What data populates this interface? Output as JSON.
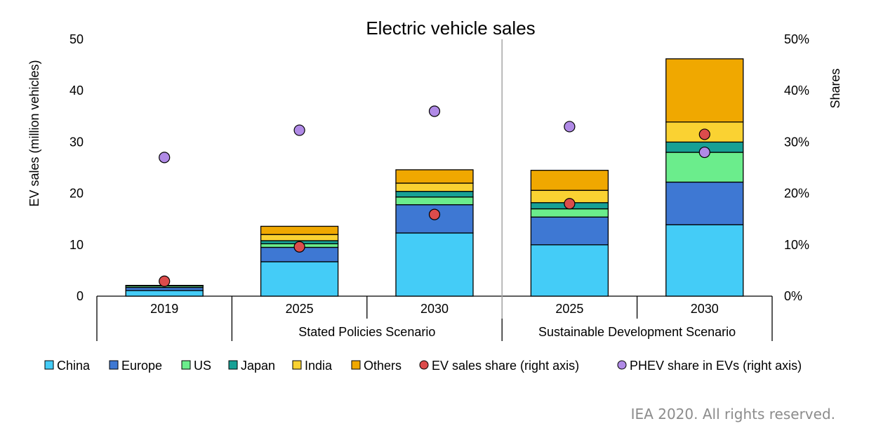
{
  "chart_data": {
    "type": "bar",
    "stacked": true,
    "title": "Electric vehicle sales",
    "ylabel": "EV sales (million vehicles)",
    "y2label": "Shares",
    "ylim": [
      0,
      50
    ],
    "y2lim": [
      0,
      0.5
    ],
    "yticks": [
      "0",
      "10",
      "20",
      "30",
      "40",
      "50"
    ],
    "y2ticks": [
      "0%",
      "10%",
      "20%",
      "30%",
      "40%",
      "50%"
    ],
    "categories": [
      "2019",
      "2025",
      "2030",
      "2025",
      "2030"
    ],
    "groups": [
      {
        "label": "",
        "categories": [
          0
        ]
      },
      {
        "label": "Stated Policies Scenario",
        "categories": [
          1,
          2
        ]
      },
      {
        "label": "Sustainable Development Scenario",
        "categories": [
          3,
          4
        ]
      }
    ],
    "series": [
      {
        "name": "China",
        "color": "#44ccf7",
        "values": [
          1.1,
          6.7,
          12.3,
          10.0,
          13.9
        ]
      },
      {
        "name": "Europe",
        "color": "#3e78d3",
        "values": [
          0.6,
          2.8,
          5.5,
          5.4,
          8.3
        ]
      },
      {
        "name": "US",
        "color": "#6bed8c",
        "values": [
          0.3,
          0.7,
          1.5,
          1.6,
          5.8
        ]
      },
      {
        "name": "Japan",
        "color": "#17a095",
        "values": [
          0.05,
          0.6,
          1.1,
          1.2,
          2.0
        ]
      },
      {
        "name": "India",
        "color": "#fad232",
        "values": [
          0.02,
          1.2,
          1.6,
          2.4,
          3.9
        ]
      },
      {
        "name": "Others",
        "color": "#f0a800",
        "values": [
          0.03,
          1.6,
          2.6,
          3.9,
          12.3
        ]
      }
    ],
    "points": [
      {
        "name": "EV sales share (right axis)",
        "color": "#dc4c4c",
        "values": [
          0.029,
          0.096,
          0.159,
          0.18,
          0.315
        ]
      },
      {
        "name": "PHEV share in EVs (right axis)",
        "color": "#b08ae6",
        "values": [
          0.27,
          0.323,
          0.36,
          0.33,
          0.28
        ]
      }
    ],
    "legend_position": "bottom",
    "grid": false
  },
  "credit": "IEA 2020. All rights reserved."
}
